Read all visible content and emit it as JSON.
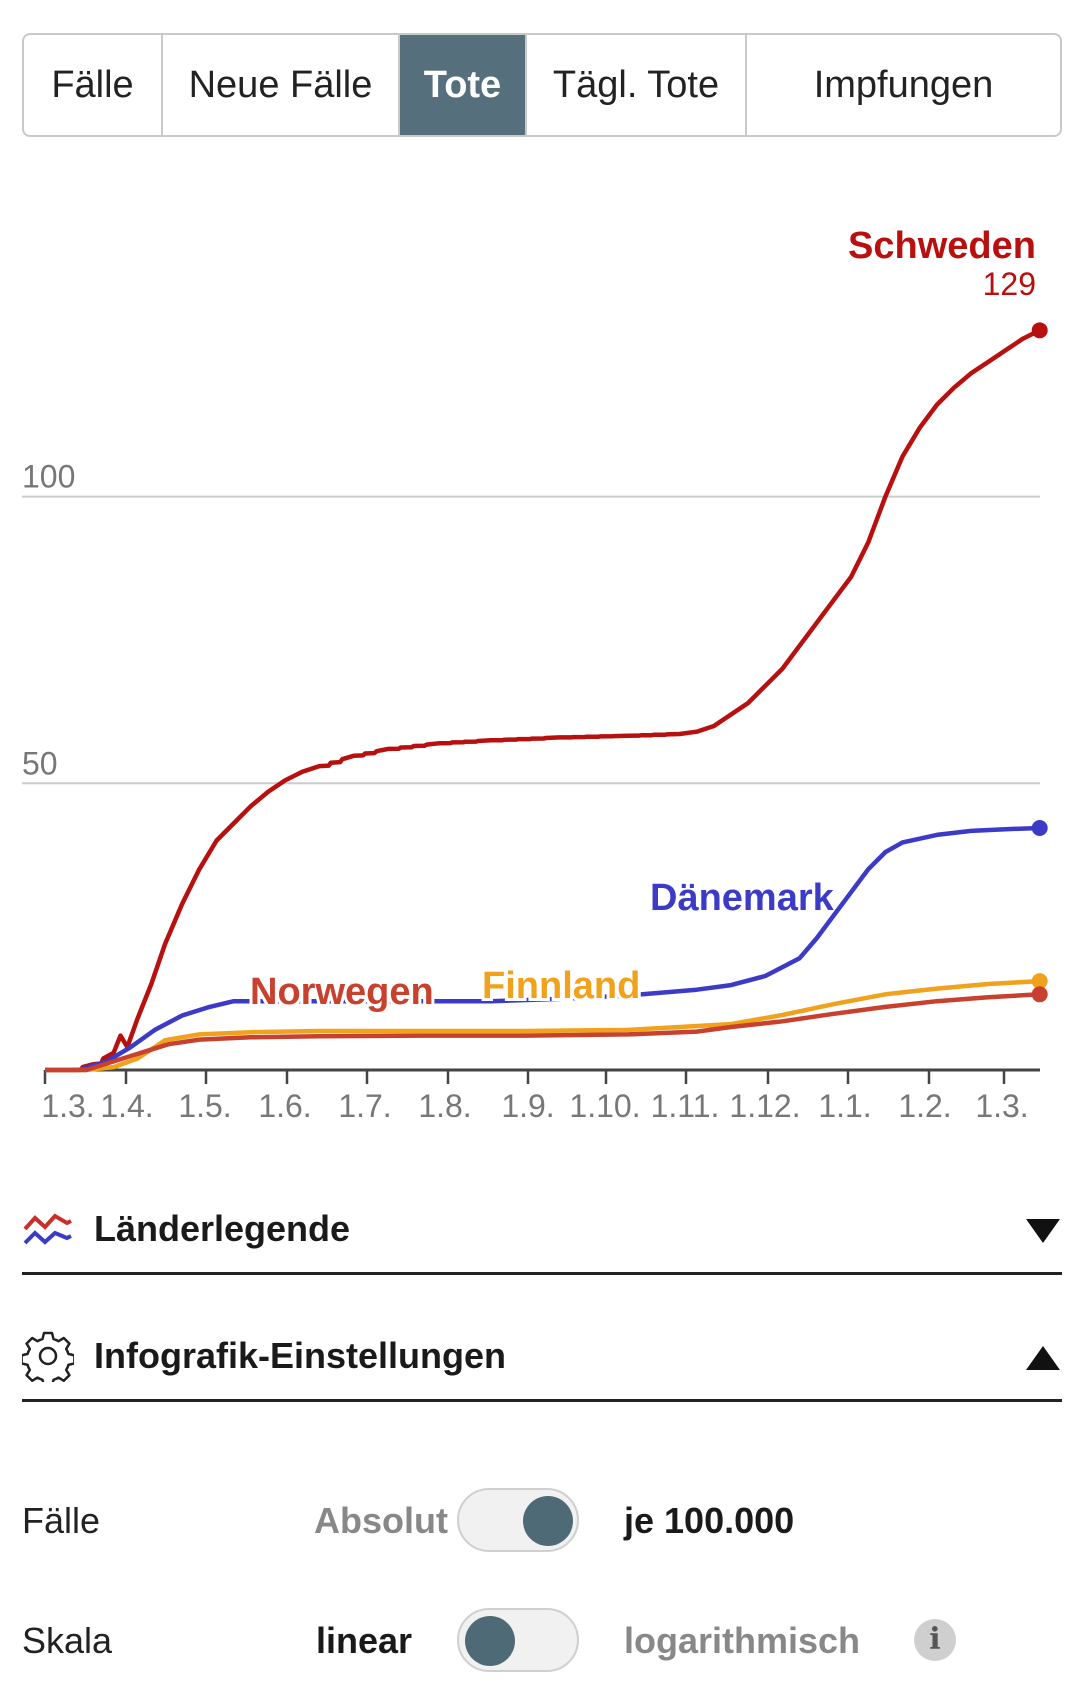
{
  "tabs": [
    {
      "label": "Fälle",
      "active": false
    },
    {
      "label": "Neue Fälle",
      "active": false
    },
    {
      "label": "Tote",
      "active": true
    },
    {
      "label": "Tägl. Tote",
      "active": false
    },
    {
      "label": "Impfungen",
      "active": false
    }
  ],
  "chart_data": {
    "type": "line",
    "y_gridlines": [
      50,
      100
    ],
    "ylim": [
      0,
      145
    ],
    "grid": "horizontal",
    "x_ticks": [
      "1.3.",
      "1.4.",
      "1.5.",
      "1.6.",
      "1.7.",
      "1.8.",
      "1.9.",
      "1.10.",
      "1.11.",
      "1.12.",
      "1.1.",
      "1.2.",
      "1.3."
    ],
    "x_domain": [
      "1.3.",
      "15.3."
    ],
    "series": [
      {
        "name": "Schweden",
        "color": "#b80f0f",
        "end_value_label": "129",
        "stepped": true,
        "points": [
          [
            0,
            0
          ],
          [
            8,
            0
          ],
          [
            14,
            1
          ],
          [
            20,
            3
          ],
          [
            22,
            6
          ],
          [
            24,
            4
          ],
          [
            27,
            9
          ],
          [
            31,
            15
          ],
          [
            35,
            22
          ],
          [
            40,
            29
          ],
          [
            45,
            35
          ],
          [
            50,
            40
          ],
          [
            55,
            43
          ],
          [
            60,
            46
          ],
          [
            65,
            48.5
          ],
          [
            70,
            50.5
          ],
          [
            75,
            52
          ],
          [
            80,
            53
          ],
          [
            90,
            54.8
          ],
          [
            100,
            56
          ],
          [
            115,
            57
          ],
          [
            130,
            57.5
          ],
          [
            150,
            58
          ],
          [
            170,
            58.3
          ],
          [
            185,
            58.6
          ],
          [
            190,
            59
          ],
          [
            195,
            60
          ],
          [
            200,
            62
          ],
          [
            205,
            64
          ],
          [
            210,
            67
          ],
          [
            215,
            70
          ],
          [
            220,
            74
          ],
          [
            225,
            78
          ],
          [
            230,
            82
          ],
          [
            235,
            86
          ],
          [
            240,
            92
          ],
          [
            245,
            100
          ],
          [
            250,
            107
          ],
          [
            255,
            112
          ],
          [
            260,
            116
          ],
          [
            265,
            119
          ],
          [
            270,
            121.5
          ],
          [
            275,
            123.5
          ],
          [
            280,
            125.5
          ],
          [
            285,
            127.5
          ],
          [
            290,
            129
          ]
        ]
      },
      {
        "name": "Dänemark",
        "color": "#3b3bc8",
        "end_value_label": "",
        "stepped": false,
        "points": [
          [
            0,
            0
          ],
          [
            10,
            0
          ],
          [
            18,
            1.5
          ],
          [
            25,
            4
          ],
          [
            32,
            7
          ],
          [
            40,
            9.5
          ],
          [
            48,
            11
          ],
          [
            55,
            12
          ],
          [
            70,
            12
          ],
          [
            90,
            12
          ],
          [
            110,
            12
          ],
          [
            130,
            12
          ],
          [
            150,
            12.4
          ],
          [
            170,
            13
          ],
          [
            190,
            14
          ],
          [
            200,
            14.8
          ],
          [
            210,
            16.4
          ],
          [
            220,
            19.5
          ],
          [
            225,
            23
          ],
          [
            230,
            27
          ],
          [
            235,
            31
          ],
          [
            240,
            35
          ],
          [
            245,
            38
          ],
          [
            250,
            39.7
          ],
          [
            260,
            41
          ],
          [
            270,
            41.7
          ],
          [
            280,
            42
          ],
          [
            290,
            42.2
          ]
        ]
      },
      {
        "name": "Finnland",
        "color": "#f0a21c",
        "end_value_label": "",
        "stepped": false,
        "points": [
          [
            0,
            0
          ],
          [
            12,
            0
          ],
          [
            20,
            0.5
          ],
          [
            27,
            2
          ],
          [
            35,
            5.2
          ],
          [
            45,
            6.2
          ],
          [
            60,
            6.6
          ],
          [
            80,
            6.8
          ],
          [
            110,
            6.8
          ],
          [
            140,
            6.8
          ],
          [
            170,
            7
          ],
          [
            200,
            8
          ],
          [
            215,
            9.6
          ],
          [
            230,
            11.5
          ],
          [
            245,
            13.2
          ],
          [
            260,
            14.2
          ],
          [
            275,
            15
          ],
          [
            290,
            15.5
          ]
        ]
      },
      {
        "name": "Norwegen",
        "color": "#c8402e",
        "end_value_label": "",
        "stepped": false,
        "points": [
          [
            0,
            0
          ],
          [
            12,
            0
          ],
          [
            20,
            1.5
          ],
          [
            28,
            3
          ],
          [
            36,
            4.5
          ],
          [
            45,
            5.3
          ],
          [
            60,
            5.7
          ],
          [
            80,
            5.9
          ],
          [
            110,
            6
          ],
          [
            140,
            6
          ],
          [
            170,
            6.2
          ],
          [
            190,
            6.7
          ],
          [
            200,
            7.5
          ],
          [
            215,
            8.5
          ],
          [
            230,
            9.8
          ],
          [
            245,
            11
          ],
          [
            260,
            12
          ],
          [
            275,
            12.7
          ],
          [
            290,
            13.2
          ]
        ]
      }
    ]
  },
  "sections": {
    "legend_title": "Länderlegende",
    "settings_title": "Infografik-Einstellungen"
  },
  "settings": {
    "cases": {
      "label": "Fälle",
      "option_left": "Absolut",
      "option_right": "je 100.000",
      "selected": "right"
    },
    "scale": {
      "label": "Skala",
      "option_left": "linear",
      "option_right": "logarithmisch",
      "selected": "left",
      "info": "i"
    }
  },
  "colors": {
    "tab_active": "#55707c",
    "toggle_knob": "#4f6a77",
    "grid": "#cccccc",
    "axis": "#444444",
    "tick_label": "#777777"
  }
}
